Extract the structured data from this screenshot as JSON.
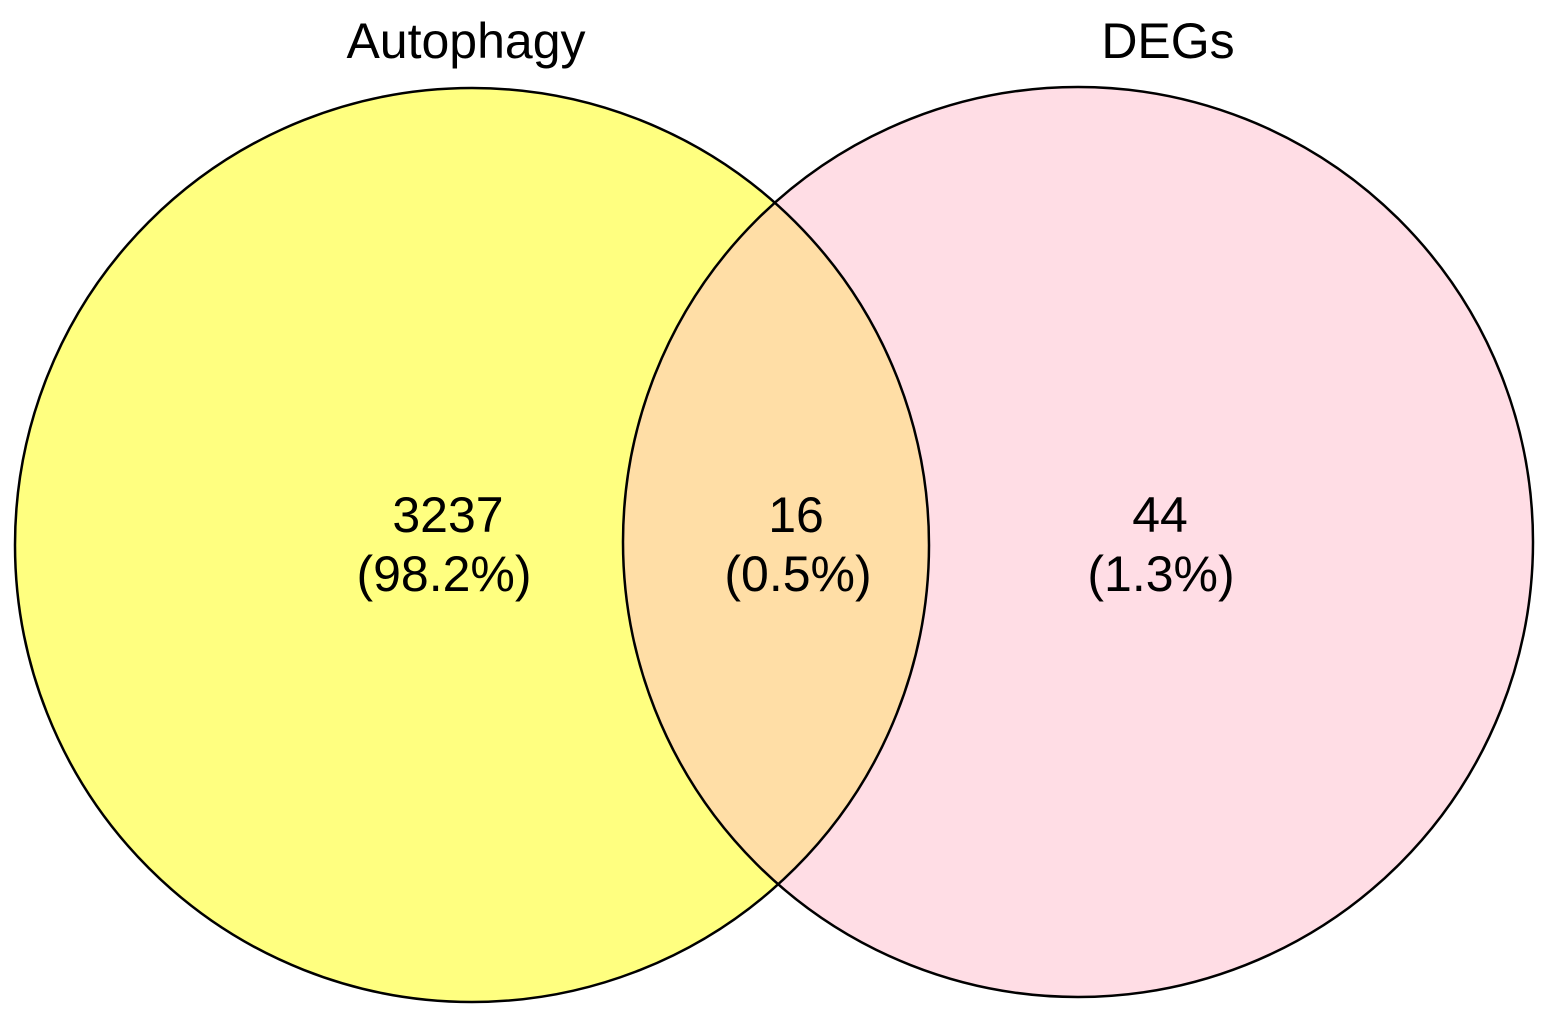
{
  "sets": [
    {
      "name": "Autophagy",
      "fill_color": "#ffff80"
    },
    {
      "name": "DEGs",
      "fill_color": "#ffdde5"
    }
  ],
  "regions": {
    "left_only": {
      "count": "3237",
      "percent": "(98.2%)"
    },
    "intersection": {
      "count": "16",
      "percent": "(0.5%)",
      "fill_color": "#ffdea6"
    },
    "right_only": {
      "count": "44",
      "percent": "(1.3%)"
    }
  },
  "outline_color": "#000000"
}
